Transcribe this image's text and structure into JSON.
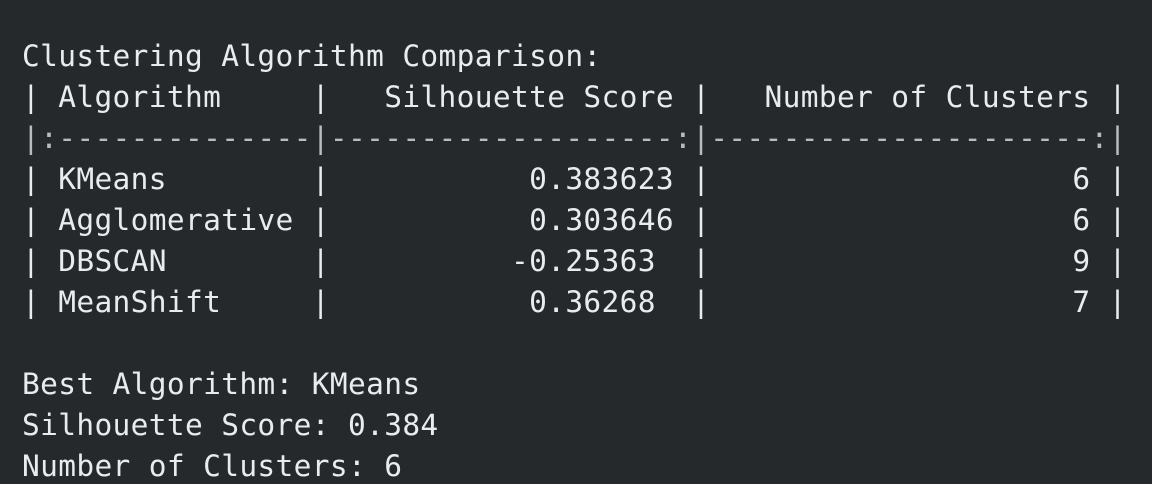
{
  "terminal": {
    "heading": "Clustering Algorithm Comparison:",
    "table": {
      "header": "| Algorithm     |   Silhouette Score |   Number of Clusters |",
      "separator": "|:--------------|-------------------:|---------------------:|",
      "rows": [
        "| KMeans        |           0.383623 |                    6 |",
        "| Agglomerative |           0.303646 |                    6 |",
        "| DBSCAN        |          -0.25363  |                    9 |",
        "| MeanShift     |           0.36268  |                    7 |"
      ]
    },
    "summary": {
      "best_algorithm": "Best Algorithm: KMeans",
      "silhouette_score": "Silhouette Score: 0.384",
      "num_clusters": "Number of Clusters: 6"
    }
  }
}
